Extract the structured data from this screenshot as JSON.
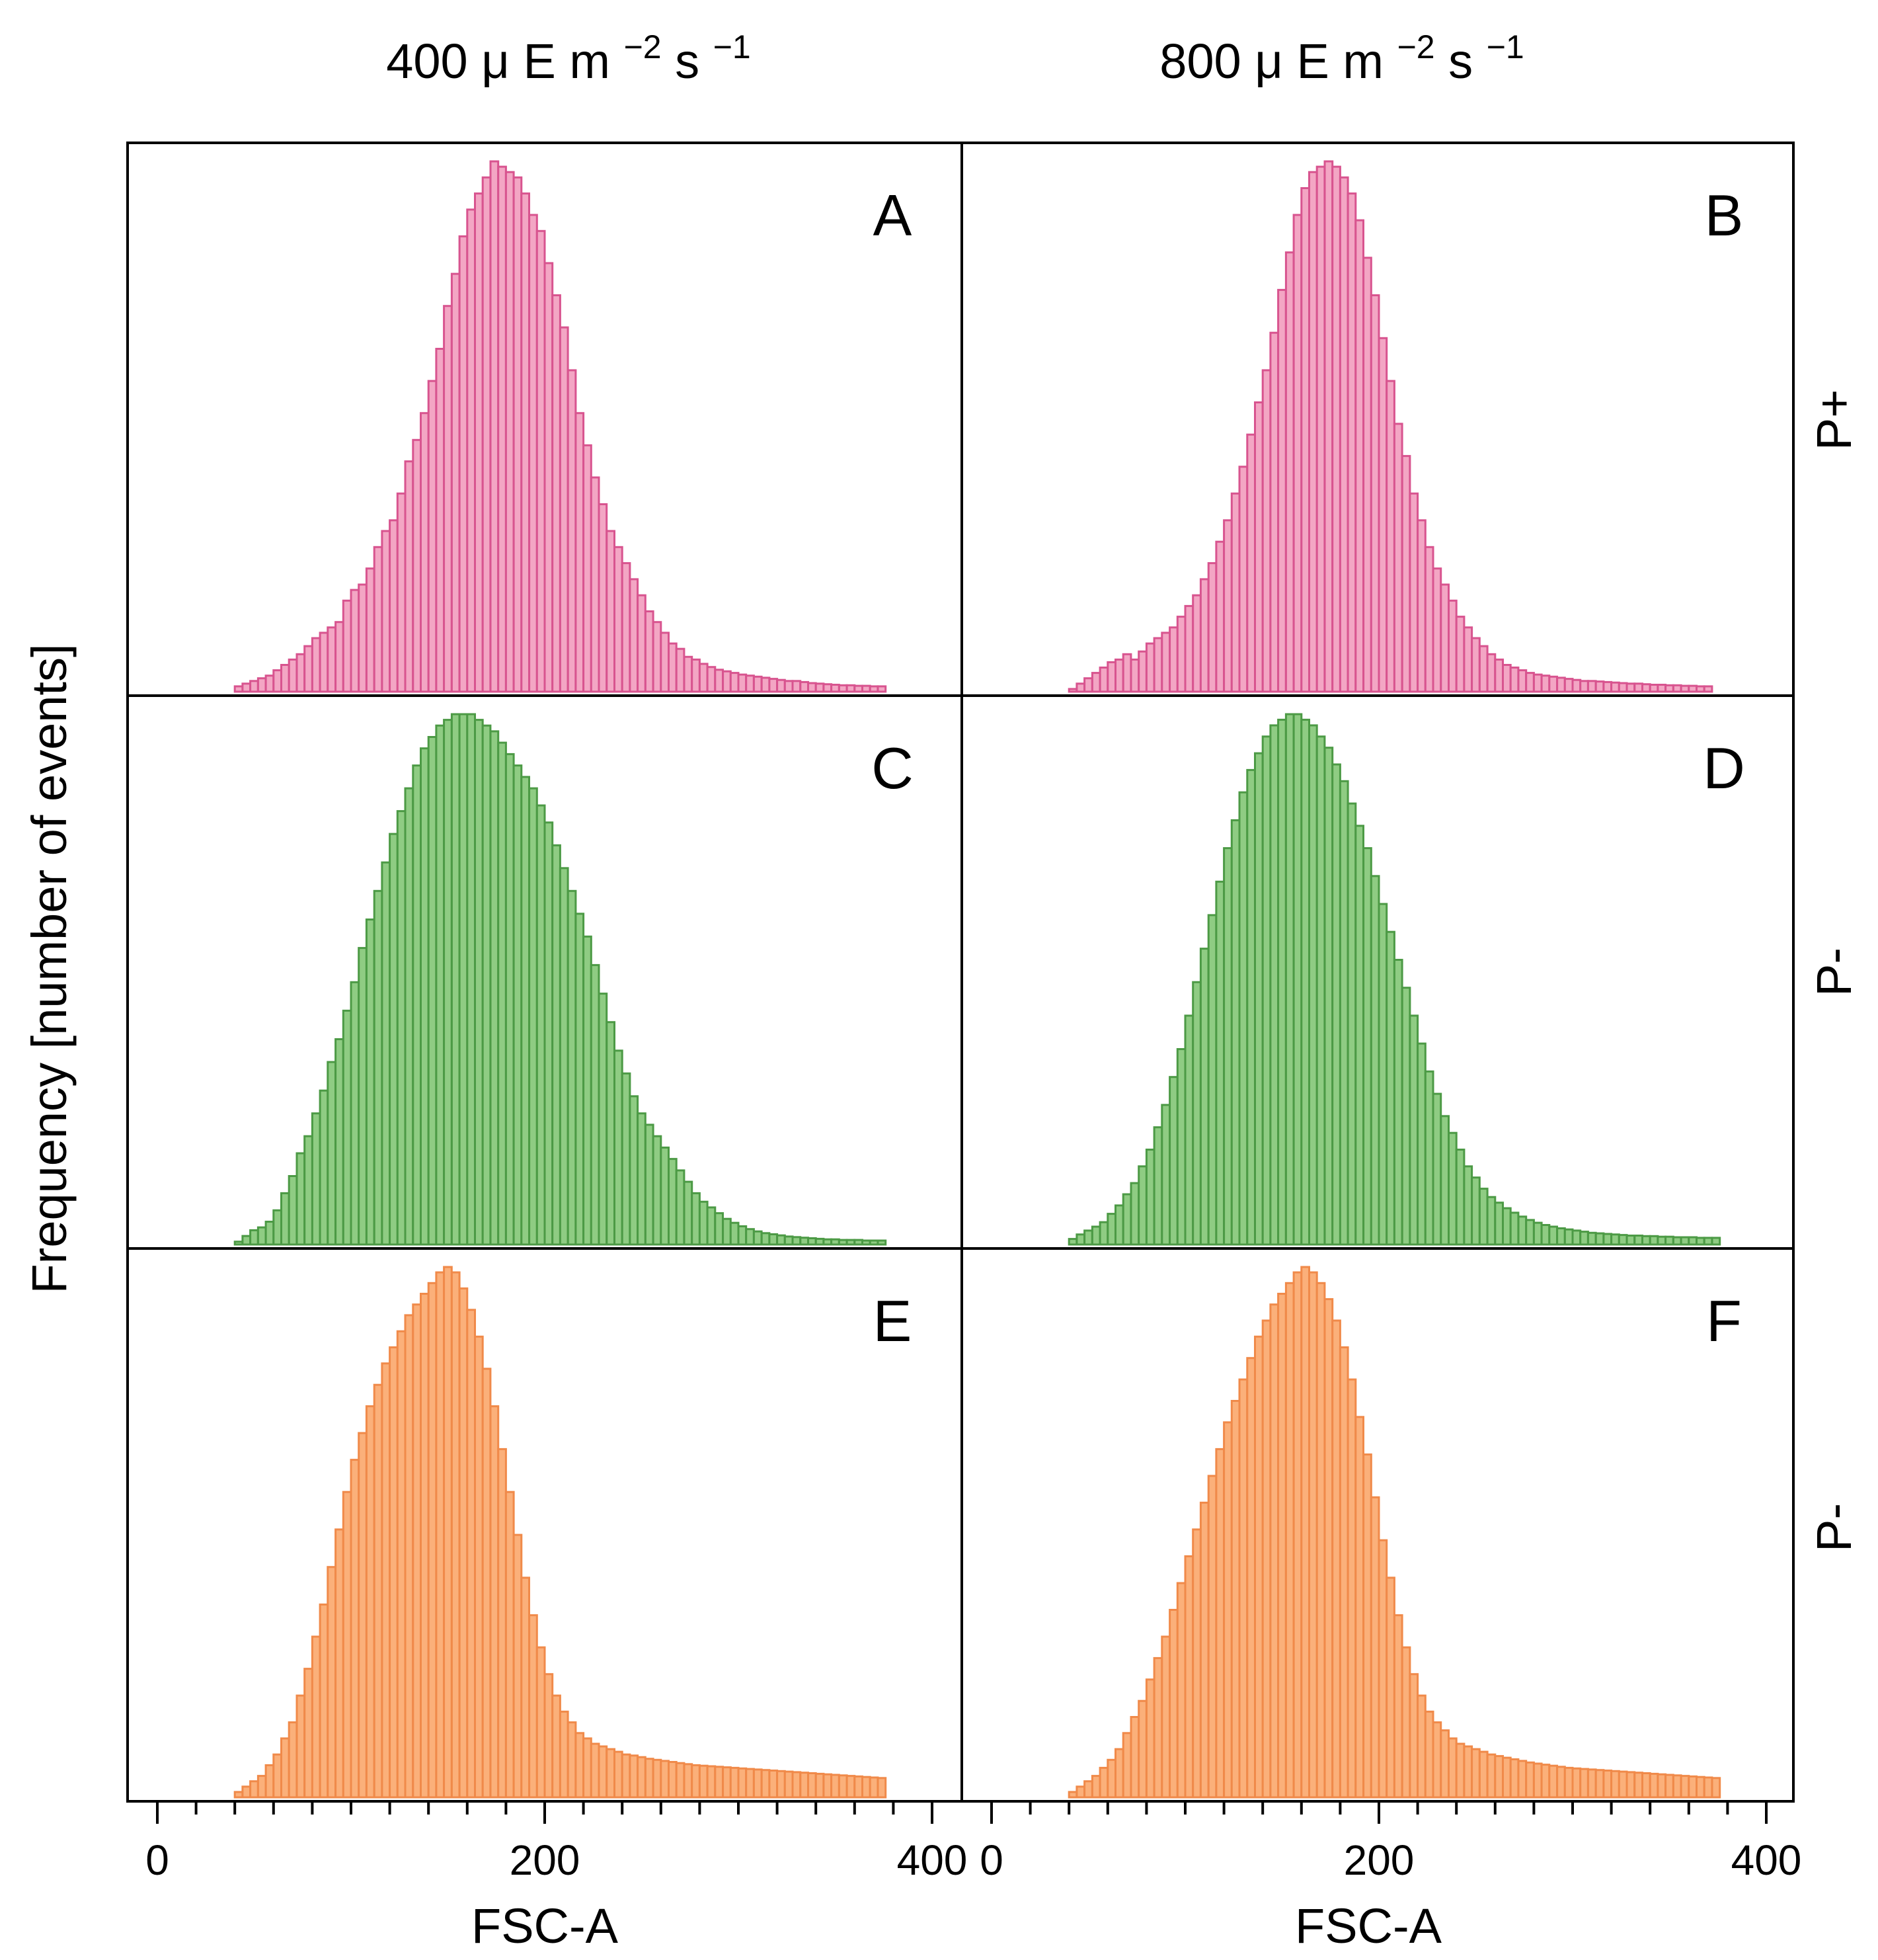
{
  "figure": {
    "column_headers": [
      {
        "value": "400",
        "unit_base": "μ E m",
        "unit_exp1": "−2",
        "unit_s": "s",
        "unit_exp2": "−1"
      },
      {
        "value": "800",
        "unit_base": "μ E m",
        "unit_exp1": "−2",
        "unit_s": "s",
        "unit_exp2": "−1"
      }
    ],
    "row_labels": [
      "P+",
      "P-",
      "P-"
    ],
    "ylabel": "Frequency [number of events]",
    "xlabel": "FSC-A",
    "colors": {
      "pink_fill": "#f3a6c4",
      "pink_edge": "#d8548f",
      "green_fill": "#8fcc83",
      "green_edge": "#4c9a45",
      "orange_fill": "#fbb07a",
      "orange_edge": "#f08a4a",
      "axis": "#000000"
    }
  },
  "chart_data": [
    {
      "panel": "A",
      "type": "bar",
      "row": 0,
      "col": 0,
      "color": "pink",
      "bin_start": 40,
      "bin_width": 4,
      "xlim": [
        0,
        415
      ],
      "xticks": [
        0,
        200,
        400
      ],
      "xlabel": "FSC-A",
      "values": [
        1,
        1.5,
        2,
        2.5,
        3,
        4,
        5,
        6,
        7,
        8.5,
        10,
        11,
        12,
        13,
        17,
        19,
        20,
        23,
        27,
        30,
        32,
        37,
        43,
        47,
        52,
        58,
        64,
        72,
        78,
        85,
        90,
        93,
        96,
        99,
        98,
        97,
        96,
        93,
        89,
        86,
        80,
        74,
        68,
        60,
        52,
        46,
        40,
        35,
        30,
        27,
        24,
        21,
        18,
        15,
        13,
        11,
        9,
        8,
        6.5,
        6,
        5.2,
        4.6,
        4.1,
        3.8,
        3.5,
        3.2,
        3,
        2.8,
        2.6,
        2.4,
        2.2,
        2,
        2,
        1.8,
        1.6,
        1.5,
        1.4,
        1.3,
        1.2,
        1.2,
        1.1,
        1.1,
        1,
        1
      ]
    },
    {
      "panel": "B",
      "type": "bar",
      "row": 0,
      "col": 1,
      "color": "pink",
      "bin_start": 40,
      "bin_width": 4,
      "xlim": [
        0,
        415
      ],
      "xticks": [
        0,
        200,
        400
      ],
      "xlabel": "FSC-A",
      "values": [
        0.5,
        1.5,
        2.5,
        3.5,
        4.5,
        5.5,
        6,
        7,
        6,
        7.5,
        9,
        10,
        11,
        12,
        14,
        16,
        18,
        21,
        24,
        28,
        32,
        37,
        42,
        48,
        54,
        60,
        67,
        75,
        82,
        89,
        94,
        97,
        98,
        99,
        98,
        96,
        93,
        88,
        81,
        74,
        66,
        58,
        50,
        44,
        37,
        32,
        27,
        23,
        20,
        17,
        14,
        12,
        10,
        8.5,
        7,
        6,
        5,
        4.5,
        4,
        3.5,
        3.2,
        3,
        2.8,
        2.6,
        2.4,
        2.2,
        2,
        2,
        1.9,
        1.8,
        1.7,
        1.6,
        1.5,
        1.5,
        1.4,
        1.3,
        1.3,
        1.2,
        1.2,
        1.1,
        1.1,
        1,
        1
      ]
    },
    {
      "panel": "C",
      "type": "bar",
      "row": 1,
      "col": 0,
      "color": "green",
      "bin_start": 40,
      "bin_width": 4,
      "xlim": [
        0,
        415
      ],
      "xticks": [
        0,
        200,
        400
      ],
      "xlabel": "FSC-A",
      "values": [
        0.5,
        1.5,
        2.5,
        3,
        4,
        6,
        9,
        12,
        16,
        19,
        23,
        27,
        32,
        36,
        41,
        46,
        52,
        57,
        62,
        67,
        72,
        76,
        80,
        84,
        87,
        89,
        91,
        92,
        93,
        93,
        93,
        92,
        91,
        90,
        88,
        86,
        84,
        82,
        80,
        77,
        74,
        70,
        66,
        62,
        58,
        54,
        49,
        44,
        39,
        34,
        30,
        26,
        23,
        21,
        19,
        17,
        15,
        13,
        11,
        9,
        7.5,
        6.5,
        5.5,
        4.5,
        3.8,
        3.2,
        2.7,
        2.3,
        2,
        1.8,
        1.6,
        1.4,
        1.3,
        1.2,
        1.1,
        1,
        0.9,
        0.9,
        0.8,
        0.8,
        0.8,
        0.7,
        0.7,
        0.7
      ]
    },
    {
      "panel": "D",
      "type": "bar",
      "row": 1,
      "col": 1,
      "color": "green",
      "bin_start": 40,
      "bin_width": 4,
      "xlim": [
        0,
        415
      ],
      "xticks": [
        0,
        200,
        400
      ],
      "xlabel": "FSC-A",
      "values": [
        1,
        1.8,
        2.5,
        3.2,
        4,
        5.5,
        7,
        9,
        11,
        14,
        17,
        21,
        25,
        30,
        35,
        41,
        47,
        53,
        59,
        65,
        71,
        76,
        81,
        85,
        88,
        91,
        93,
        94,
        95,
        95,
        94,
        93,
        91,
        89,
        86,
        83,
        79,
        75,
        71,
        66,
        61,
        56,
        51,
        46,
        41,
        36,
        31,
        27,
        23,
        20,
        17,
        14,
        12,
        10,
        8.5,
        7.5,
        6.5,
        5.7,
        5,
        4.4,
        3.9,
        3.5,
        3.2,
        2.9,
        2.7,
        2.5,
        2.3,
        2.1,
        2,
        1.9,
        1.8,
        1.7,
        1.6,
        1.6,
        1.5,
        1.5,
        1.4,
        1.4,
        1.3,
        1.3,
        1.3,
        1.2,
        1.2,
        1.2
      ]
    },
    {
      "panel": "E",
      "type": "bar",
      "row": 2,
      "col": 0,
      "color": "orange",
      "bin_start": 40,
      "bin_width": 4,
      "xlim": [
        0,
        415
      ],
      "xticks": [
        0,
        200,
        400
      ],
      "xlabel": "FSC-A",
      "values": [
        1,
        2,
        3,
        4,
        6,
        8,
        11,
        14,
        19,
        24,
        30,
        36,
        43,
        50,
        57,
        63,
        68,
        73,
        77,
        81,
        84,
        87,
        90,
        92,
        94,
        96,
        98,
        99,
        98,
        95,
        91,
        86,
        80,
        73,
        65,
        57,
        49,
        41,
        34,
        28,
        23,
        19,
        16,
        14,
        12,
        11,
        10,
        9.5,
        9,
        8.5,
        8,
        7.8,
        7.5,
        7.2,
        7,
        6.8,
        6.6,
        6.4,
        6.2,
        6,
        5.9,
        5.8,
        5.7,
        5.6,
        5.5,
        5.4,
        5.3,
        5.2,
        5.1,
        5,
        4.9,
        4.8,
        4.7,
        4.6,
        4.5,
        4.4,
        4.3,
        4.2,
        4.1,
        4,
        3.9,
        3.8,
        3.7,
        3.6
      ]
    },
    {
      "panel": "F",
      "type": "bar",
      "row": 2,
      "col": 1,
      "color": "orange",
      "bin_start": 40,
      "bin_width": 4,
      "xlim": [
        0,
        415
      ],
      "xticks": [
        0,
        200,
        400
      ],
      "xlabel": "FSC-A",
      "values": [
        1,
        2,
        3,
        4,
        5.5,
        7,
        9,
        12,
        15,
        18,
        22,
        26,
        30,
        35,
        40,
        45,
        50,
        55,
        60,
        65,
        70,
        74,
        78,
        82,
        86,
        89,
        92,
        94,
        96,
        98,
        99,
        98,
        96,
        93,
        89,
        84,
        78,
        71,
        64,
        56,
        48,
        41,
        34,
        28,
        23,
        19,
        16,
        14,
        12.5,
        11,
        10,
        9.5,
        9,
        8.5,
        8,
        7.7,
        7.4,
        7.1,
        6.8,
        6.5,
        6.3,
        6.1,
        5.9,
        5.7,
        5.5,
        5.4,
        5.3,
        5.2,
        5.1,
        5,
        4.9,
        4.8,
        4.7,
        4.6,
        4.5,
        4.4,
        4.3,
        4.2,
        4.1,
        4,
        3.9,
        3.8,
        3.7,
        3.6
      ]
    }
  ]
}
